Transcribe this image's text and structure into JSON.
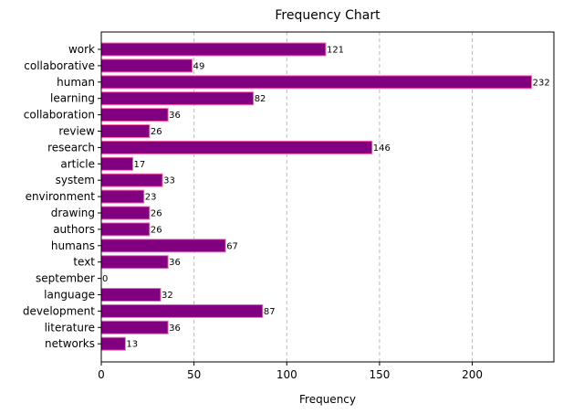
{
  "chart_data": {
    "type": "bar",
    "orientation": "horizontal",
    "title": "Frequency Chart",
    "xlabel": "Frequency",
    "ylabel": "",
    "categories": [
      "work",
      "collaborative",
      "human",
      "learning",
      "collaboration",
      "review",
      "research",
      "article",
      "system",
      "environment",
      "drawing",
      "authors",
      "humans",
      "text",
      "september",
      "language",
      "development",
      "literature",
      "networks"
    ],
    "values": [
      121,
      49,
      232,
      82,
      36,
      26,
      146,
      17,
      33,
      23,
      26,
      26,
      67,
      36,
      0,
      32,
      87,
      36,
      13
    ],
    "xlim": [
      0,
      244
    ],
    "xticks": [
      0,
      50,
      100,
      150,
      200
    ],
    "grid": "x-dashed",
    "bar_color": "#800080",
    "bar_edge_color": "#ff69b4",
    "grid_color": "#bbbbbb"
  }
}
